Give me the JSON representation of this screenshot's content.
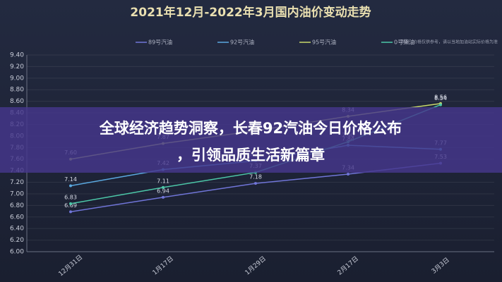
{
  "chart_data": {
    "type": "line",
    "title": "2021年12月-2022年3月国内油价变动走势",
    "note": "声明：价格仅供参考，请以当地加油站实际价格为准",
    "categories": [
      "12月31日",
      "1月17日",
      "1月29日",
      "2月17日",
      "3月3日"
    ],
    "series": [
      {
        "name": "89号汽油",
        "color": "#7075d8",
        "values": [
          6.69,
          6.94,
          7.18,
          7.34,
          7.53
        ],
        "value_labels": [
          "6.69",
          "6.94",
          "7.18",
          "7.34",
          "7.53"
        ]
      },
      {
        "name": "92号汽油",
        "color": "#5aa8e0",
        "values": [
          7.14,
          7.42,
          7.57,
          7.84,
          7.77
        ],
        "value_labels": [
          "7.14",
          "7.42",
          "7.57",
          "7.84",
          "7.77"
        ]
      },
      {
        "name": "95号汽油",
        "color": "#c8d86a",
        "values": [
          7.6,
          7.87,
          8.09,
          8.34,
          8.56
        ],
        "value_labels": [
          "7.60",
          "7.87",
          "8.09",
          "8.34",
          "8.56"
        ]
      },
      {
        "name": "0号柴油",
        "color": "#4cc7a8",
        "values": [
          6.83,
          7.11,
          7.37,
          7.9,
          8.54
        ],
        "value_labels": [
          "6.83",
          "7.11",
          "7.37",
          "7.90",
          "8.54"
        ]
      }
    ],
    "ylim": [
      6.0,
      9.4
    ],
    "yticks": [
      {
        "value": 6.0,
        "label": "6.00"
      },
      {
        "value": 6.2,
        "label": "6.20"
      },
      {
        "value": 6.4,
        "label": "6.40"
      },
      {
        "value": 6.6,
        "label": "6.60"
      },
      {
        "value": 6.8,
        "label": "6.80"
      },
      {
        "value": 7.0,
        "label": "7.00"
      },
      {
        "value": 7.2,
        "label": "7.20"
      },
      {
        "value": 7.4,
        "label": "7.40"
      },
      {
        "value": 7.6,
        "label": "7.60"
      },
      {
        "value": 7.8,
        "label": "7.80"
      },
      {
        "value": 8.0,
        "label": "8.00"
      },
      {
        "value": 8.2,
        "label": "8.20"
      },
      {
        "value": 8.4,
        "label": "8.40"
      },
      {
        "value": 8.6,
        "label": "8.60"
      },
      {
        "value": 8.8,
        "label": "8.80"
      },
      {
        "value": 9.0,
        "label": "9.00"
      },
      {
        "value": 9.2,
        "label": "9.20"
      },
      {
        "value": 9.4,
        "label": "9.40"
      }
    ],
    "grid": true
  },
  "banner": {
    "lines": [
      "全球经济趋势洞察，长春92汽油今日价格公布",
      "，引领品质生活新篇章"
    ]
  }
}
